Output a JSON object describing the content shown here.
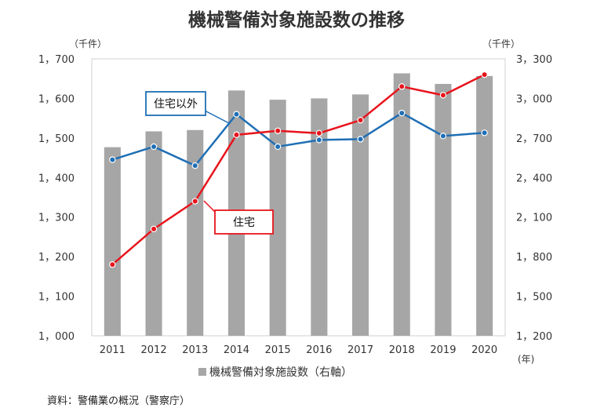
{
  "chart_data": {
    "type": "bar+line",
    "title": "機械警備対象施設数の推移",
    "left_unit": "（千件）",
    "right_unit": "（千件）",
    "x_unit": "(年)",
    "categories": [
      "2011",
      "2012",
      "2013",
      "2014",
      "2015",
      "2016",
      "2017",
      "2018",
      "2019",
      "2020"
    ],
    "left_axis": {
      "ylim": [
        1000,
        1700
      ],
      "ticks": [
        1000,
        1100,
        1200,
        1300,
        1400,
        1500,
        1600,
        1700
      ],
      "tick_labels": [
        "1，000",
        "1，100",
        "1，200",
        "1，300",
        "1，400",
        "1，500",
        "1，600",
        "1，700"
      ]
    },
    "right_axis": {
      "ylim": [
        1200,
        3300
      ],
      "ticks": [
        1200,
        1500,
        1800,
        2100,
        2400,
        2700,
        3000,
        3300
      ],
      "tick_labels": [
        "1，200",
        "1，500",
        "1，800",
        "2，100",
        "2，400",
        "2，700",
        "3，000",
        "3，300"
      ]
    },
    "bar_series": {
      "name": "機械警備対象施設数（右軸）",
      "axis": "right",
      "values": [
        2630,
        2750,
        2760,
        3060,
        2990,
        3000,
        3030,
        3190,
        3110,
        3170
      ]
    },
    "line_series": [
      {
        "name": "住宅以外",
        "axis": "left",
        "values": [
          1445,
          1478,
          1430,
          1560,
          1478,
          1495,
          1497,
          1563,
          1505,
          1513
        ]
      },
      {
        "name": "住宅",
        "axis": "left",
        "values": [
          1180,
          1270,
          1340,
          1508,
          1518,
          1512,
          1545,
          1630,
          1608,
          1660
        ]
      }
    ],
    "legend_label": "機械警備対象施設数（右軸）",
    "colors": {
      "bar": "#a6a6a6",
      "line_other": "#1f6fb5",
      "line_home": "#e8141c"
    },
    "grid": false,
    "legend_position": "bottom"
  },
  "source": "資料：警備業の概況（警察庁）"
}
